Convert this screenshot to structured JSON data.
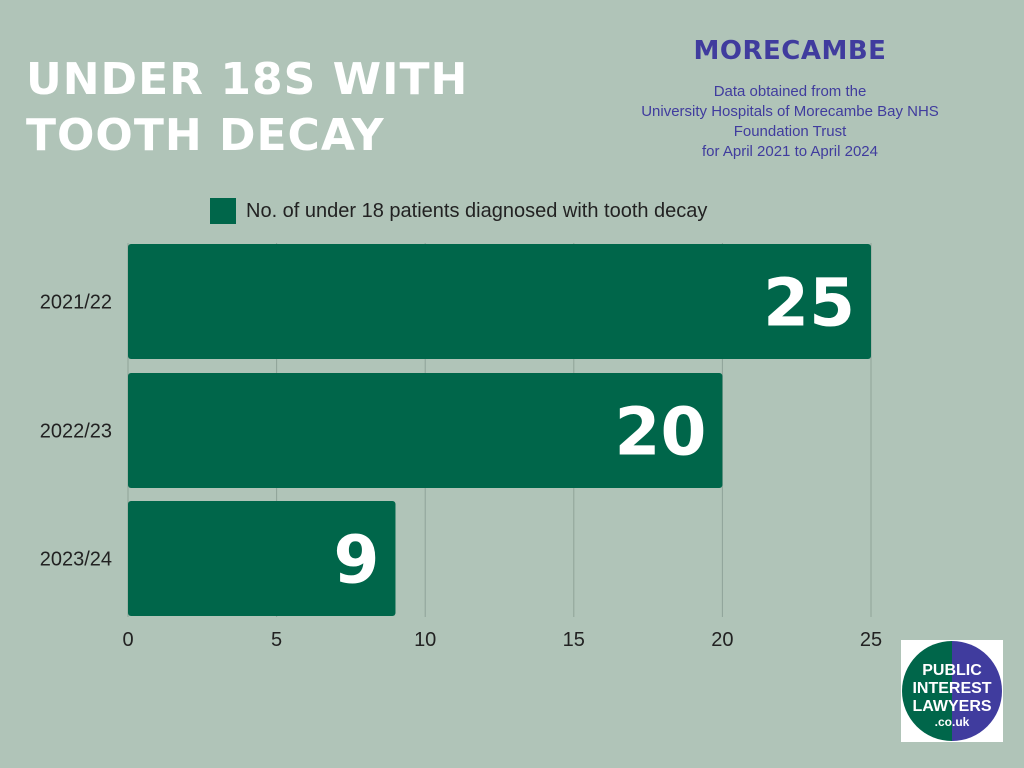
{
  "header": {
    "title_lines": [
      "UNDER 18S WITH",
      "TOOTH DECAY"
    ],
    "location": "MORECAMBE",
    "source_lines": [
      "Data obtained from the",
      "University Hospitals of Morecambe Bay NHS",
      "Foundation Trust",
      "for April 2021 to April 2024"
    ]
  },
  "chart_data": {
    "type": "bar",
    "orientation": "horizontal",
    "categories": [
      "2021/22",
      "2022/23",
      "2023/24"
    ],
    "series": [
      {
        "name": "No. of under 18 patients diagnosed with tooth decay",
        "values": [
          25,
          20,
          9
        ]
      }
    ],
    "x_ticks": [
      "0",
      "5",
      "10",
      "15",
      "20",
      "25"
    ],
    "xlim": [
      0,
      25
    ],
    "grid": true,
    "legend_position": "top",
    "bar_color": "#00664a",
    "data_labels": [
      "25",
      "20",
      "9"
    ]
  },
  "logo": {
    "lines": [
      "PUBLIC",
      "INTEREST",
      "LAWYERS",
      ".co.uk"
    ],
    "colors": {
      "left": "#00664a",
      "right": "#403c9e"
    }
  },
  "colors": {
    "background": "#b0c4b8",
    "title": "#ffffff",
    "accent": "#403c9e",
    "bar": "#00664a"
  }
}
